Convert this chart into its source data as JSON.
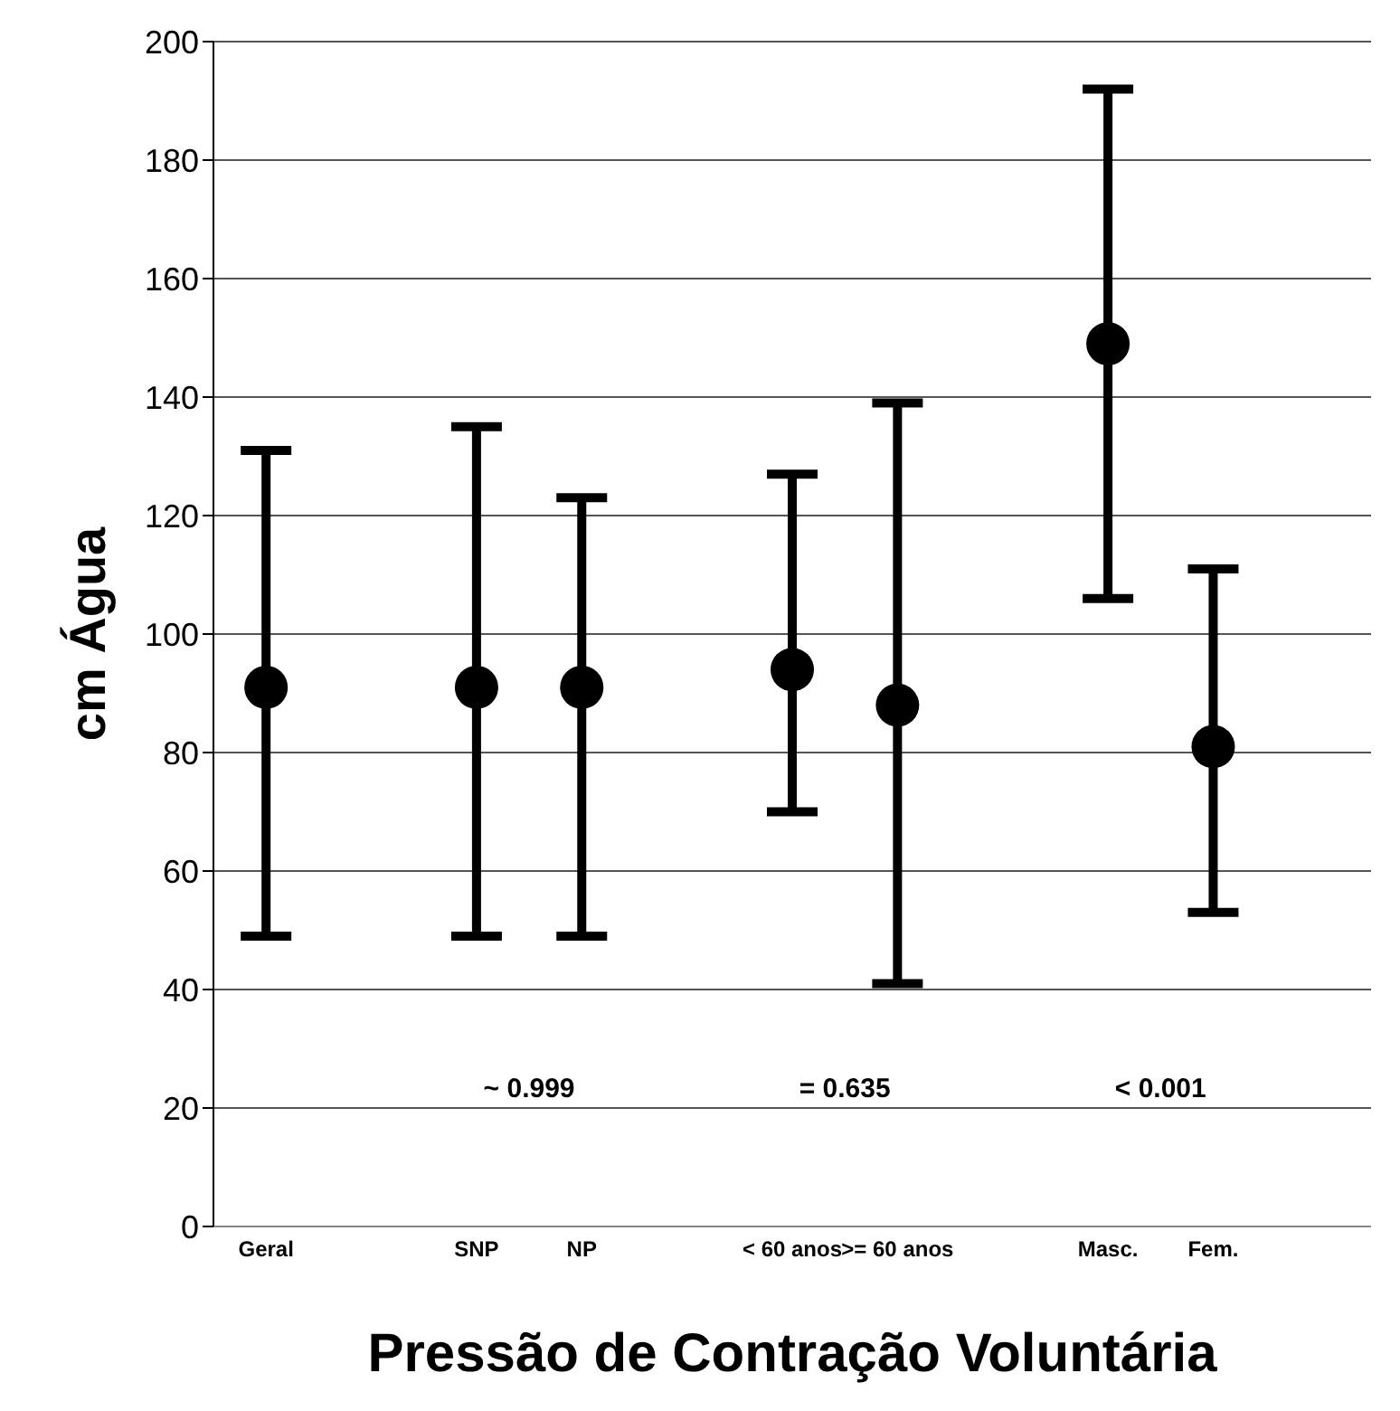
{
  "chart_data": {
    "type": "scatter",
    "xlabel": "Pressão de Contração Voluntária",
    "ylabel": "cm Água",
    "categories": [
      "Geral",
      null,
      "SNP",
      "NP",
      null,
      "< 60 anos",
      ">= 60 anos",
      null,
      "Masc.",
      "Fem.",
      null
    ],
    "series": [
      {
        "color": "#000000",
        "values": [
          91,
          null,
          91,
          91,
          null,
          94,
          88,
          null,
          149,
          81,
          null
        ],
        "errors": [
          [
            49,
            131
          ],
          null,
          [
            49,
            135
          ],
          [
            49,
            123
          ],
          null,
          [
            70,
            127
          ],
          [
            41,
            139
          ],
          null,
          [
            106,
            192
          ],
          [
            53,
            111
          ],
          null
        ]
      }
    ],
    "ylim": [
      0,
      200
    ],
    "yticks": [
      0,
      20,
      40,
      60,
      80,
      100,
      120,
      140,
      160,
      180,
      200
    ],
    "grid": "y",
    "marker": "circle",
    "annotations": [
      "~ 0.999",
      "= 0.635",
      "< 0.001"
    ]
  }
}
